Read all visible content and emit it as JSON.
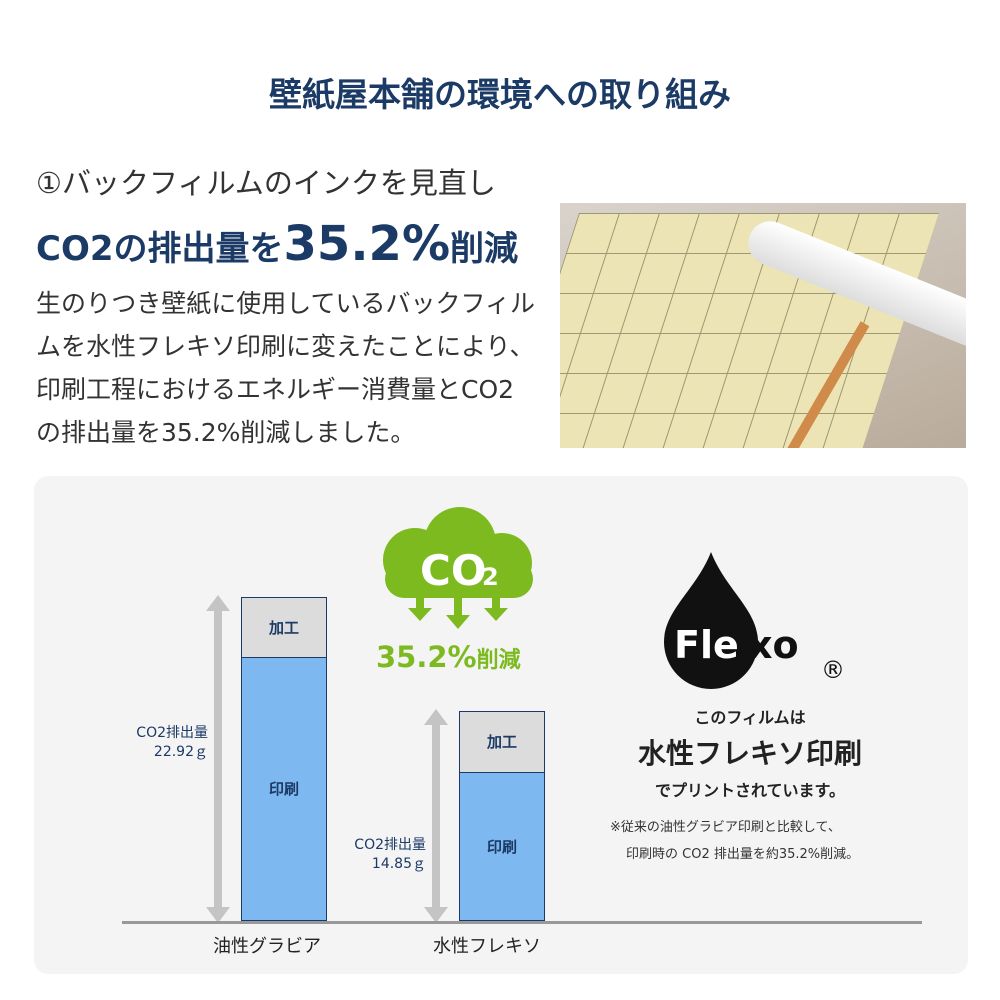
{
  "title": "壁紙屋本舗の環境への取り組み",
  "heading": {
    "line1": "①バックフィルムのインクを見直し",
    "line2_pre": "CO2の排出量を",
    "line2_big": "35.2%",
    "line2_post": "削減"
  },
  "body": "生のりつき壁紙に使用しているバックフィルムを水性フレキソ印刷に変えたことにより、印刷工程におけるエネルギー消費量とCO2の排出量を35.2%削減しました。",
  "cloud": {
    "text": "CO",
    "sub": "2",
    "reduction": "35.2%",
    "reduction_suffix": "削減",
    "color": "#7dba20"
  },
  "chart_data": {
    "type": "bar",
    "stacked": true,
    "categories": [
      "油性グラビア",
      "水性フレキソ"
    ],
    "series": [
      {
        "name": "印刷",
        "values": [
          18.7,
          10.55
        ]
      },
      {
        "name": "加工",
        "values": [
          4.22,
          4.3
        ]
      }
    ],
    "totals": [
      {
        "label": "CO2排出量",
        "value": "22.92ｇ"
      },
      {
        "label": "CO2排出量",
        "value": "14.85ｇ"
      }
    ],
    "colors": {
      "print": "#7db9f0",
      "process": "#dcdcdc"
    }
  },
  "flexo": {
    "logo": "Flexo",
    "registered": "®",
    "line1": "このフィルムは",
    "line2": "水性フレキソ印刷",
    "line3": "でプリントされています。",
    "note1": "※従来の油性グラビア印刷と比較して、",
    "note2": "印刷時の CO2 排出量を約35.2%削減。"
  }
}
